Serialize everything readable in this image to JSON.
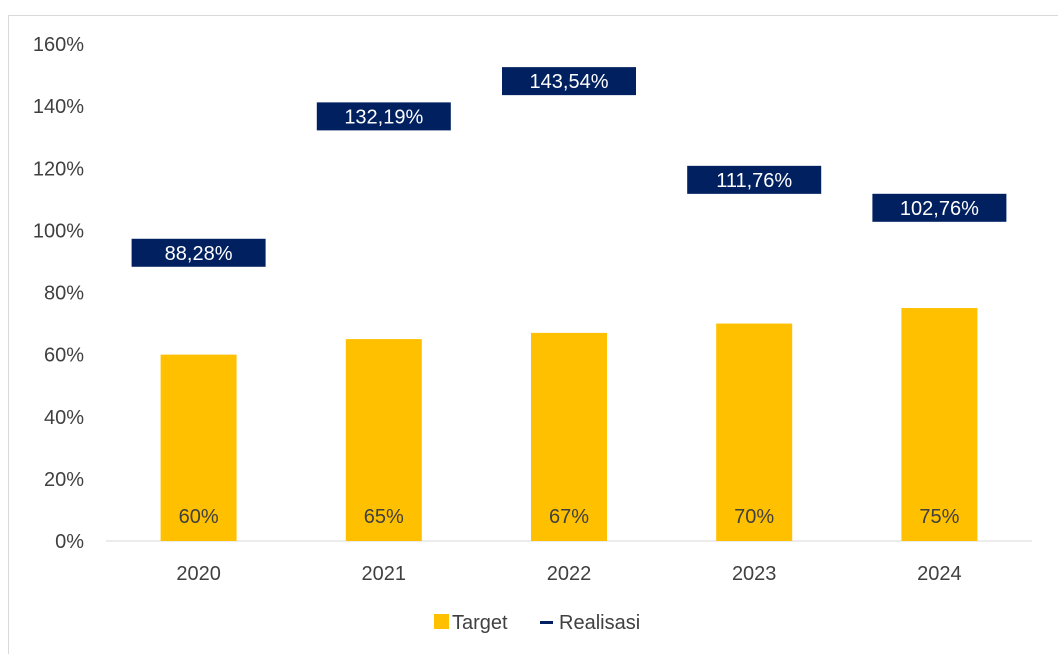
{
  "chart_data": {
    "type": "bar",
    "categories": [
      "2020",
      "2021",
      "2022",
      "2023",
      "2024"
    ],
    "series": [
      {
        "name": "Target",
        "kind": "bar",
        "color": "#FFC000",
        "values": [
          60,
          65,
          67,
          70,
          75
        ],
        "labels": [
          "60%",
          "65%",
          "67%",
          "70%",
          "75%"
        ]
      },
      {
        "name": "Realisasi",
        "kind": "line-marker",
        "color": "#002060",
        "values": [
          88.28,
          132.19,
          143.54,
          111.76,
          102.76
        ],
        "labels": [
          "88,28%",
          "132,19%",
          "143,54%",
          "111,76%",
          "102,76%"
        ]
      }
    ],
    "yticks": [
      "0%",
      "20%",
      "40%",
      "60%",
      "80%",
      "100%",
      "120%",
      "140%",
      "160%"
    ],
    "ylim": [
      0,
      160
    ],
    "ystep": 20,
    "grid": false,
    "legend": "bottom-center",
    "title": "",
    "xlabel": "",
    "ylabel": ""
  }
}
